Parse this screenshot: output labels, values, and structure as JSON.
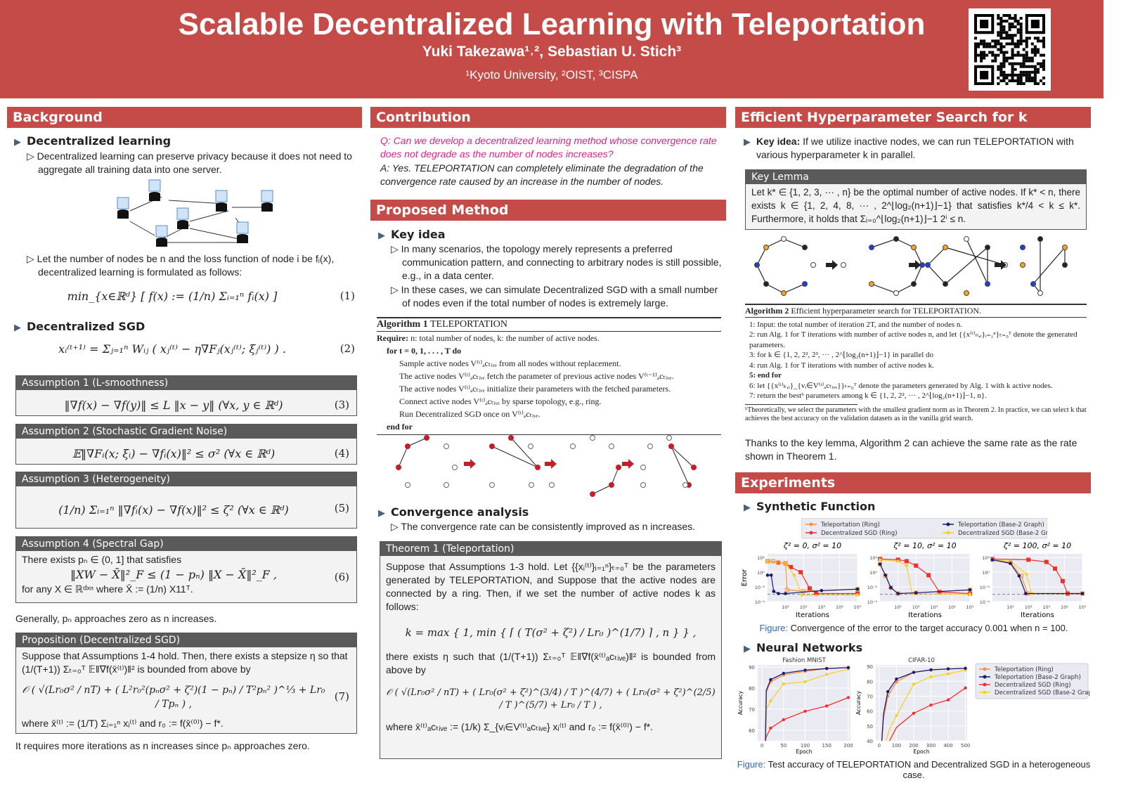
{
  "header": {
    "title": "Scalable Decentralized Learning with Teleportation",
    "authors": "Yuki Takezawa¹˒², Sebastian U. Stich³",
    "affiliations": "¹Kyoto University, ²OIST, ³CISPA",
    "qr_label": "QR code"
  },
  "background": {
    "title": "Background",
    "h1": "Decentralized learning",
    "p1": "Decentralized learning can preserve privacy because it does not need to aggregate all training data into one server.",
    "p2": "Let the number of nodes be n and the loss function of node i be fᵢ(x), decentralized learning is formulated as follows:",
    "eq1": "min_{x∈ℝᵈ} [ f(x) := (1/n) Σᵢ₌₁ⁿ fᵢ(x) ]",
    "eq1_num": "(1)",
    "h2": "Decentralized SGD",
    "eq2": "xᵢ⁽ᵗ⁺¹⁾ = Σⱼ₌₁ⁿ Wᵢⱼ ( xⱼ⁽ᵗ⁾ − η∇Fⱼ(xⱼ⁽ᵗ⁾; ξⱼ⁽ᵗ⁾) ) .",
    "eq2_num": "(2)",
    "assumptions": [
      {
        "title": "Assumption 1 (L-smoothness)",
        "eq": "‖∇f(x) − ∇f(y)‖ ≤ L ‖x − y‖    (∀x, y ∈ ℝᵈ)",
        "num": "(3)"
      },
      {
        "title": "Assumption 2 (Stochastic Gradient Noise)",
        "eq": "𝔼‖∇Fᵢ(x; ξᵢ) − ∇fᵢ(x)‖² ≤ σ²   (∀x ∈ ℝᵈ)",
        "num": "(4)"
      },
      {
        "title": "Assumption 3 (Heterogeneity)",
        "eq": "(1/n) Σᵢ₌₁ⁿ ‖∇fᵢ(x) − ∇f(x)‖² ≤ ζ²   (∀x ∈ ℝᵈ)",
        "num": "(5)"
      },
      {
        "title": "Assumption 4 (Spectral Gap)",
        "pre": "There exists pₙ ∈ (0, 1] that satisfies",
        "eq": "‖XW − X̄‖²_F ≤ (1 − pₙ) ‖X − X̄‖²_F ,",
        "post": "for any X ∈ ℝᵈˣⁿ where X̄ := (1/n) X11ᵀ.",
        "num": "(6)"
      }
    ],
    "generally": "Generally, pₙ approaches zero as n increases.",
    "prop": {
      "title": "Proposition (Decentralized SGD)",
      "p1": "Suppose that Assumptions 1-4 hold. Then, there exists a stepsize η so that (1/(T+1)) Σₜ₌₀ᵀ 𝔼‖∇f(x̄⁽ᵗ⁾)‖² is bounded from above by",
      "eq": "𝒪 ( √(Lr₀σ² / nT) + ( L²r₀²(pₙσ² + ζ²)(1 − pₙ) / T²pₙ² )^⅓ + Lr₀ / Tpₙ ) ,",
      "num": "(7)",
      "p2": "where x̄⁽ᵗ⁾ := (1/T) Σᵢ₌₁ⁿ xᵢ⁽ᵗ⁾ and r₀ := f(x̄⁽⁰⁾) − f*."
    },
    "final": "It requires more iterations as n increases since pₙ approaches zero."
  },
  "contribution": {
    "title": "Contribution",
    "q": "Q: Can we develop a decentralized learning method whose convergence rate does not degrade as the number of nodes increases?",
    "a": "A: Yes. TELEPORTATION can completely eliminate the degradation of the convergence rate caused by an increase in the number of nodes."
  },
  "method": {
    "title": "Proposed Method",
    "h1": "Key idea",
    "b1": "In many scenarios, the topology merely represents a preferred communication pattern, and connecting to arbitrary nodes is still possible, e.g., in a data center.",
    "b2": "In these cases, we can simulate Decentralized SGD with a small number of nodes even if the total number of nodes is extremely large.",
    "alg": {
      "title": "Algorithm 1",
      "name": "TELEPORTATION",
      "require": "Require:",
      "require_text": "n: total number of nodes, k: the number of active nodes.",
      "for": "for t = 0, 1, . . . , T do",
      "lines": [
        "Sample active nodes V⁽ᵗ⁾ₐcₜᵢᵥₑ from all nodes without replacement.",
        "The active nodes V⁽ᵗ⁾ₐcₜᵢᵥₑ fetch the parameter of previous active nodes V⁽ᵗ⁻¹⁾ₐcₜᵢᵥₑ.",
        "The active nodes V⁽ᵗ⁾ₐcₜᵢᵥₑ initialize their parameters with the fetched parameters.",
        "Connect active nodes V⁽ᵗ⁾ₐcₜᵢᵥₑ by sparse topology, e.g., ring.",
        "Run Decentralized SGD once on V⁽ᵗ⁾ₐcₜᵢᵥₑ."
      ],
      "endfor": "end for"
    },
    "h2": "Convergence analysis",
    "b3": "The convergence rate can be consistently improved as n increases.",
    "theorem": {
      "title": "Theorem 1 (Teleportation)",
      "p1": "Suppose that Assumptions 1-3 hold. Let {{xᵢ⁽ᵗ⁾}ᵢ₌₁ⁿ}ₜ₌₀ᵀ be the parameters generated by TELEPORTATION, and Suppose that the active nodes are connected by a ring. Then, if we set the number of active nodes k as follows:",
      "eq1": "k = max { 1, min { ⌈ ( T(σ² + ζ²) / Lr₀ )^(1/7) ⌉ , n } } ,",
      "p2": "there exists η such that (1/(T+1)) Σₜ₌₀ᵀ 𝔼‖∇f(x̄⁽ᵗ⁾ₐcₜᵢᵥₑ)‖² is bounded from above by",
      "eq2": "𝒪 ( √(Lr₀σ² / nT) + ( Lr₀(σ² + ζ²)^(3/4) / T )^(4/7) + ( Lr₀(σ² + ζ²)^(2/5) / T )^(5/7) + Lr₀ / T ) ,",
      "p3": "where x̄⁽ᵗ⁾ₐcₜᵢᵥₑ := (1/k) Σ_{vᵢ∈V⁽ᵗ⁾ₐcₜᵢᵥₑ} xᵢ⁽ᵗ⁾ and r₀ := f(x̄⁽⁰⁾) − f*."
    }
  },
  "hyper": {
    "title": "Efficient Hyperparameter Search for k",
    "key_label": "Key idea:",
    "key_text": "If we utilize inactive nodes, we can run TELEPORTATION with various hyperparameter k in parallel.",
    "lemma": {
      "title": "Key Lemma",
      "text": "Let k* ∈ {1, 2, 3, ··· , n} be the optimal number of active nodes. If k* < n, there exists k ∈ {1, 2, 4, 8, ··· , 2^⌊log₂(n+1)⌋−1} that satisfies k*/4 < k ≤ k*. Furthermore, it holds that Σᵢ₌₀^⌊log₂(n+1)⌋−1 2ⁱ ≤ n."
    },
    "alg": {
      "title": "Algorithm 2",
      "name": "Efficient hyperparameter search for TELEPORTATION.",
      "lines": [
        "1: Input: the total number of iteration 2T, and the number of nodes n.",
        "2: run Alg. 1 for T iterations with number of active nodes n, and let {{x⁽ᵗ⁾ₙ,ᵢ}ᵢ₌₁ⁿ}ₜ₌₀ᵀ denote the generated parameters.",
        "3: for k ∈ {1, 2, 2², 2³, ··· , 2^⌊log₂(n+1)⌋−1} in parallel do",
        "4:     run Alg. 1 for T iterations with number of active nodes k.",
        "5: end for",
        "6: let {{x⁽ᵗ⁾ₖ,ᵢ}_{vᵢ∈V⁽ᵗ⁾ₐcₜᵢᵥₑ}}ₜ₌₀ᵀ denote the parameters generated by Alg. 1 with k active nodes.",
        "7: return the bestᵇ parameters among k ∈ {1, 2, 2², ··· , 2^⌊log₂(n+1)⌋−1, n}."
      ],
      "footnote": "ᵇTheoretically, we select the parameters with the smallest gradient norm as in Theorem 2. In practice, we can select k that achieves the best accuracy on the validation datasets as in the vanilla grid search."
    },
    "thanks": "Thanks to the key lemma, Algorithm 2 can achieve the same rate as the rate shown in Theorem 1."
  },
  "experiments": {
    "title": "Experiments",
    "h1": "Synthetic Function",
    "h2": "Neural Networks",
    "cap1_label": "Figure:",
    "cap1": "Convergence of the error to the target accuracy 0.001 when n = 100.",
    "cap2_label": "Figure:",
    "cap2": "Test accuracy of TELEPORTATION and Decentralized SGD in a heterogeneous case."
  },
  "colors": {
    "tele_ring": "#f5923e",
    "tele_base2": "#1a1a6e",
    "dsgd_ring": "#f0302a",
    "dsgd_base2": "#f7d02a",
    "accent": "#c44b47"
  },
  "chart_data": [
    {
      "type": "line",
      "title": "ζ² = 0, σ² = 10",
      "xlabel": "Iterations",
      "ylabel": "Error",
      "xscale": "log",
      "xlim": [
        1,
        100000
      ],
      "ylim_log10": [
        -4,
        2.5
      ],
      "yticks": [
        "10²",
        "10⁰",
        "10⁻²",
        "10⁻⁴"
      ],
      "xticks": [
        "10¹",
        "10²",
        "10³",
        "10⁴",
        "10⁵"
      ],
      "target_log10": -3,
      "series": [
        {
          "name": "Teleportation (Ring)",
          "points": [
            [
              1,
              1.5
            ],
            [
              2,
              1.5
            ],
            [
              4,
              1.3
            ],
            [
              10,
              1.2
            ],
            [
              12,
              -2.4
            ],
            [
              100,
              -2.6
            ],
            [
              100000,
              -2.3
            ]
          ]
        },
        {
          "name": "Teleportation (Base-2 Graph)",
          "points": [
            [
              1,
              -0.4
            ],
            [
              1.6,
              -0.4
            ],
            [
              2.2,
              -2.6
            ],
            [
              4,
              -2.9
            ],
            [
              10,
              -2.9
            ],
            [
              1000,
              -2.5
            ],
            [
              100000,
              -2.3
            ]
          ]
        },
        {
          "name": "Decentralized SGD (Ring)",
          "points": [
            [
              1,
              1.5
            ],
            [
              4,
              1.3
            ],
            [
              10,
              1.2
            ],
            [
              20,
              0.7
            ],
            [
              70,
              0
            ],
            [
              220,
              -2.2
            ],
            [
              500,
              -2.9
            ],
            [
              100000,
              -2.9
            ]
          ]
        },
        {
          "name": "Decentralized SGD (Base-2 Graph)",
          "points": [
            [
              1,
              1.5
            ],
            [
              10,
              1.2
            ],
            [
              30,
              -0.4
            ],
            [
              80,
              -3.1
            ],
            [
              100000,
              -3.1
            ]
          ]
        }
      ]
    },
    {
      "type": "line",
      "title": "ζ² = 10, σ² = 10",
      "xlabel": "Iterations",
      "ylabel": "",
      "xscale": "log",
      "xlim": [
        1,
        100000
      ],
      "ylim_log10": [
        -4,
        2.5
      ],
      "yticks": [
        "10²",
        "10⁰",
        "10⁻²",
        "10⁻⁴"
      ],
      "xticks": [
        "10¹",
        "10²",
        "10³",
        "10⁴",
        "10⁵"
      ],
      "target_log10": -3,
      "series": [
        {
          "name": "Teleportation (Ring)",
          "points": [
            [
              1,
              1.1
            ],
            [
              2,
              -0.5
            ],
            [
              4,
              -2.1
            ],
            [
              10,
              -2.9
            ],
            [
              100,
              -2.8
            ],
            [
              100000,
              -2.4
            ]
          ]
        },
        {
          "name": "Teleportation (Base-2 Graph)",
          "points": [
            [
              1,
              1.1
            ],
            [
              2,
              -0.4
            ],
            [
              4,
              -2.1
            ],
            [
              10,
              -2.9
            ],
            [
              100,
              -2.8
            ],
            [
              100000,
              -2.4
            ]
          ]
        },
        {
          "name": "Decentralized SGD (Ring)",
          "points": [
            [
              1,
              1.8
            ],
            [
              10,
              1.7
            ],
            [
              30,
              1.5
            ],
            [
              100,
              0.9
            ],
            [
              500,
              -0.4
            ],
            [
              2000,
              -2.7
            ],
            [
              100000,
              -2.9
            ]
          ]
        },
        {
          "name": "Decentralized SGD (Base-2 Graph)",
          "points": [
            [
              1,
              1.7
            ],
            [
              10,
              1.5
            ],
            [
              30,
              0.9
            ],
            [
              60,
              -2.9
            ],
            [
              100000,
              -3.0
            ]
          ]
        }
      ]
    },
    {
      "type": "line",
      "title": "ζ² = 100, σ² = 10",
      "xlabel": "Iterations",
      "ylabel": "",
      "xscale": "log",
      "xlim": [
        1,
        100000
      ],
      "ylim_log10": [
        -4,
        2.5
      ],
      "yticks": [
        "10²",
        "10⁰",
        "10⁻²",
        "10⁻⁴"
      ],
      "xticks": [
        "10¹",
        "10²",
        "10³",
        "10⁴",
        "10⁵"
      ],
      "target_log10": -3,
      "series": [
        {
          "name": "Teleportation (Ring)",
          "points": [
            [
              1,
              1.7
            ],
            [
              10,
              1.3
            ],
            [
              40,
              -0.5
            ],
            [
              90,
              -2.9
            ],
            [
              100000,
              -2.9
            ]
          ]
        },
        {
          "name": "Teleportation (Base-2 Graph)",
          "points": [
            [
              1,
              1.7
            ],
            [
              10,
              1.2
            ],
            [
              30,
              -0.5
            ],
            [
              70,
              -2.9
            ],
            [
              100000,
              -2.9
            ]
          ]
        },
        {
          "name": "Decentralized SGD (Ring)",
          "points": [
            [
              1,
              1.8
            ],
            [
              100,
              1.7
            ],
            [
              1000,
              1.4
            ],
            [
              3000,
              0.5
            ],
            [
              8000,
              -1.2
            ],
            [
              15000,
              -2.9
            ],
            [
              100000,
              -2.9
            ]
          ]
        },
        {
          "name": "Decentralized SGD (Base-2 Graph)",
          "points": [
            [
              1,
              1.7
            ],
            [
              10,
              1.5
            ],
            [
              80,
              -0.3
            ],
            [
              150,
              -2.9
            ],
            [
              100000,
              -2.9
            ]
          ]
        }
      ]
    },
    {
      "type": "line",
      "title": "Fashion MNIST",
      "xlabel": "Epoch",
      "ylabel": "Accuracy",
      "xlim": [
        -10,
        205
      ],
      "ylim": [
        55,
        91
      ],
      "xticks": [
        0,
        50,
        100,
        150,
        200
      ],
      "yticks": [
        60,
        70,
        80,
        90
      ],
      "series": [
        {
          "name": "Teleportation (Ring)",
          "x": [
            8,
            10,
            20,
            50,
            100,
            150,
            200
          ],
          "y": [
            55,
            78,
            83,
            86.2,
            88,
            89.2,
            89.8
          ]
        },
        {
          "name": "Teleportation (Base-2 Graph)",
          "x": [
            8,
            10,
            20,
            50,
            100,
            150,
            200
          ],
          "y": [
            55,
            79,
            84,
            87,
            88.5,
            89.3,
            89.7
          ]
        },
        {
          "name": "Decentralized SGD (Ring)",
          "x": [
            8,
            10,
            20,
            50,
            100,
            150,
            200
          ],
          "y": [
            55,
            57,
            61,
            65,
            69,
            71.5,
            75.5
          ]
        },
        {
          "name": "Decentralized SGD (Base-2 Graph)",
          "x": [
            8,
            10,
            20,
            50,
            100,
            150,
            200
          ],
          "y": [
            55,
            70,
            74,
            82,
            83,
            86.5,
            89
          ]
        }
      ]
    },
    {
      "type": "line",
      "title": "CIFAR-10",
      "xlabel": "Epoch",
      "ylabel": "Accuracy",
      "xlim": [
        -20,
        510
      ],
      "ylim": [
        40,
        91
      ],
      "xticks": [
        0,
        100,
        200,
        300,
        400,
        500
      ],
      "yticks": [
        40,
        50,
        60,
        70,
        80,
        90
      ],
      "series": [
        {
          "name": "Teleportation (Ring)",
          "x": [
            15,
            25,
            50,
            100,
            200,
            300,
            400,
            500
          ],
          "y": [
            40,
            55,
            70,
            79.5,
            86,
            87.5,
            88.3,
            88.7
          ]
        },
        {
          "name": "Teleportation (Base-2 Graph)",
          "x": [
            15,
            25,
            50,
            100,
            200,
            300,
            400,
            500
          ],
          "y": [
            40,
            58,
            73,
            81.5,
            86,
            87.7,
            88.3,
            88.7
          ]
        },
        {
          "name": "Decentralized SGD (Ring)",
          "x": [
            60,
            100,
            200,
            300,
            400,
            500
          ],
          "y": [
            40,
            49,
            58.5,
            64,
            67.5,
            75.5
          ]
        },
        {
          "name": "Decentralized SGD (Base-2 Graph)",
          "x": [
            40,
            60,
            100,
            200,
            300,
            400,
            500
          ],
          "y": [
            40,
            48,
            57,
            78,
            83,
            85,
            87.5
          ]
        }
      ]
    }
  ]
}
